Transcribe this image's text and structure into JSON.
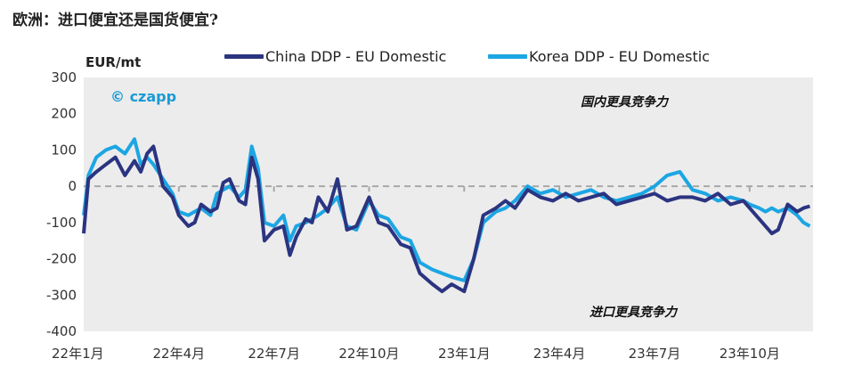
{
  "chart_data": {
    "type": "line",
    "title": "欧洲：进口便宜还是国货便宜?",
    "ylabel": "EUR/mt",
    "xlabel": "",
    "ylim": [
      -400,
      300
    ],
    "yticks": [
      300,
      200,
      100,
      0,
      -100,
      -200,
      -300,
      -400
    ],
    "ytick_labels": [
      "300",
      "200",
      "100",
      "0",
      "-100",
      "-200",
      "-300",
      "-400"
    ],
    "x_labels": [
      "22年1月",
      "22年4月",
      "22年7月",
      "22年10月",
      "23年1月",
      "23年4月",
      "23年7月",
      "23年10月"
    ],
    "x_months_total": 23,
    "legend": {
      "position": "top",
      "china": "China DDP - EU Domestic",
      "korea": "Korea DDP - EU Domestic"
    },
    "copyright": "© czapp",
    "annotations": {
      "upper": "国内更具竞争力",
      "lower": "进口更具竞争力"
    },
    "colors": {
      "china": "#2b3480",
      "korea": "#1ca6e3",
      "zero_line": "#a8a8a8",
      "plot_bg": "#ececec",
      "copyright": "#1a9ad6"
    },
    "series": [
      {
        "name": "China DDP - EU Domestic",
        "x": [
          0,
          0.15,
          0.4,
          0.7,
          1.0,
          1.3,
          1.6,
          1.8,
          2.0,
          2.2,
          2.5,
          2.8,
          3.0,
          3.3,
          3.5,
          3.7,
          4.0,
          4.2,
          4.4,
          4.6,
          4.9,
          5.1,
          5.3,
          5.5,
          5.7,
          6.0,
          6.3,
          6.5,
          6.7,
          7.0,
          7.2,
          7.4,
          7.7,
          8.0,
          8.3,
          8.6,
          9.0,
          9.3,
          9.6,
          10.0,
          10.3,
          10.6,
          11.0,
          11.3,
          11.6,
          12.0,
          12.3,
          12.6,
          13.0,
          13.3,
          13.6,
          14.0,
          14.4,
          14.8,
          15.2,
          15.6,
          16.0,
          16.4,
          16.8,
          17.2,
          17.6,
          18.0,
          18.4,
          18.8,
          19.2,
          19.6,
          20.0,
          20.4,
          20.8,
          21.0,
          21.3,
          21.5,
          21.7,
          21.9,
          22.2,
          22.5,
          22.7,
          22.9
        ],
        "values": [
          -130,
          20,
          40,
          60,
          80,
          30,
          70,
          40,
          90,
          110,
          0,
          -30,
          -80,
          -110,
          -100,
          -50,
          -70,
          -60,
          10,
          20,
          -40,
          -50,
          80,
          20,
          -150,
          -120,
          -110,
          -190,
          -140,
          -90,
          -100,
          -30,
          -70,
          20,
          -120,
          -110,
          -30,
          -100,
          -110,
          -160,
          -170,
          -240,
          -270,
          -290,
          -270,
          -290,
          -200,
          -80,
          -60,
          -40,
          -60,
          -10,
          -30,
          -40,
          -20,
          -40,
          -30,
          -20,
          -50,
          -40,
          -30,
          -20,
          -40,
          -30,
          -30,
          -40,
          -20,
          -50,
          -40,
          -60,
          -90,
          -110,
          -130,
          -120,
          -50,
          -70,
          -60,
          -55
        ]
      },
      {
        "name": "Korea DDP - EU Domestic",
        "x": [
          0,
          0.15,
          0.4,
          0.7,
          1.0,
          1.3,
          1.6,
          1.8,
          2.0,
          2.2,
          2.5,
          2.8,
          3.0,
          3.3,
          3.5,
          3.7,
          4.0,
          4.2,
          4.4,
          4.6,
          4.9,
          5.1,
          5.3,
          5.5,
          5.7,
          6.0,
          6.3,
          6.5,
          6.7,
          7.0,
          7.2,
          7.4,
          7.7,
          8.0,
          8.3,
          8.6,
          9.0,
          9.3,
          9.6,
          10.0,
          10.3,
          10.6,
          11.0,
          11.3,
          11.6,
          12.0,
          12.3,
          12.6,
          13.0,
          13.3,
          13.6,
          14.0,
          14.4,
          14.8,
          15.2,
          15.6,
          16.0,
          16.4,
          16.8,
          17.2,
          17.6,
          18.0,
          18.4,
          18.8,
          19.2,
          19.6,
          20.0,
          20.4,
          20.8,
          21.0,
          21.3,
          21.5,
          21.7,
          21.9,
          22.2,
          22.5,
          22.7,
          22.9
        ],
        "values": [
          -80,
          30,
          80,
          100,
          110,
          90,
          130,
          60,
          80,
          60,
          20,
          -20,
          -70,
          -80,
          -70,
          -60,
          -80,
          -20,
          -10,
          0,
          -30,
          -10,
          110,
          50,
          -100,
          -110,
          -80,
          -150,
          -110,
          -100,
          -90,
          -80,
          -60,
          -30,
          -110,
          -120,
          -40,
          -80,
          -90,
          -140,
          -150,
          -210,
          -230,
          -240,
          -250,
          -260,
          -200,
          -100,
          -70,
          -60,
          -40,
          0,
          -20,
          -10,
          -30,
          -20,
          -10,
          -30,
          -40,
          -30,
          -20,
          0,
          30,
          40,
          -10,
          -20,
          -40,
          -30,
          -40,
          -50,
          -60,
          -70,
          -60,
          -70,
          -60,
          -80,
          -100,
          -110
        ]
      }
    ]
  }
}
